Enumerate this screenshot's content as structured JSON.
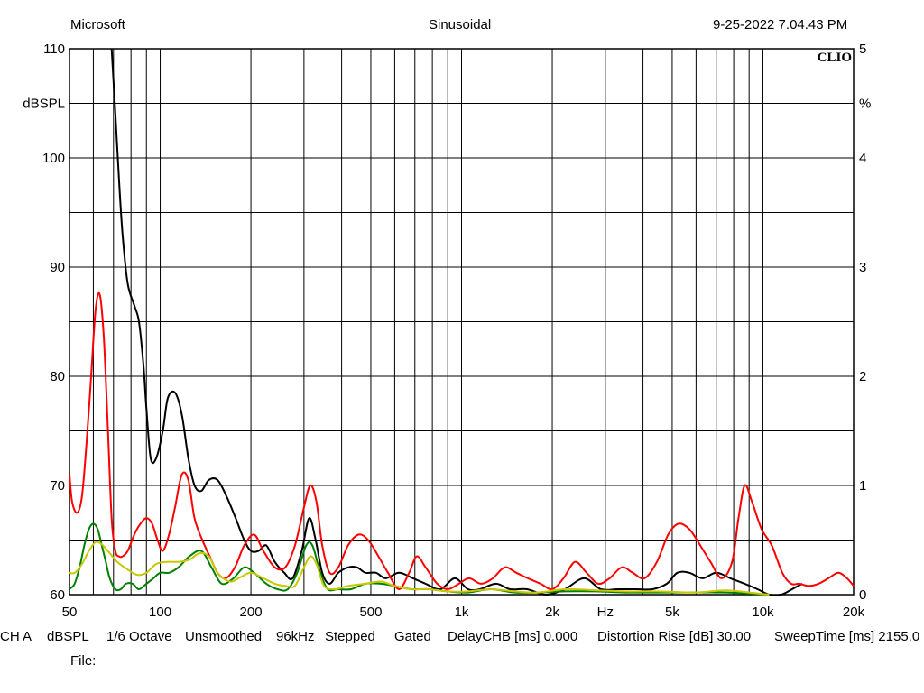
{
  "header": {
    "left": "Microsoft",
    "center": "Sinusoidal",
    "right": "9-25-2022 7.04.43 PM"
  },
  "footer": {
    "settings": [
      "CH A",
      "dBSPL",
      "1/6 Octave",
      "Unsmoothed",
      "96kHz",
      "Stepped",
      "Gated",
      "DelayCHB [ms] 0.000",
      "Distortion Rise [dB] 30.00",
      "SweepTime [ms] 2155.0"
    ],
    "file_label": "File:"
  },
  "chart_data": {
    "type": "line",
    "brand": "CLIO",
    "x_scale": "log",
    "xlim": [
      50,
      20000
    ],
    "x_tick_labels": [
      {
        "value": 50,
        "label": "50"
      },
      {
        "value": 100,
        "label": "100"
      },
      {
        "value": 200,
        "label": "200"
      },
      {
        "value": 500,
        "label": "500"
      },
      {
        "value": 1000,
        "label": "1k"
      },
      {
        "value": 2000,
        "label": "2k"
      },
      {
        "value": 3000,
        "label": "Hz"
      },
      {
        "value": 5000,
        "label": "5k"
      },
      {
        "value": 10000,
        "label": "10k"
      },
      {
        "value": 20000,
        "label": "20k"
      }
    ],
    "x_gridlines": [
      50,
      60,
      70,
      80,
      90,
      100,
      200,
      300,
      400,
      500,
      600,
      700,
      800,
      900,
      1000,
      2000,
      3000,
      4000,
      5000,
      6000,
      7000,
      8000,
      9000,
      10000,
      20000
    ],
    "y_left": {
      "label": "dBSPL",
      "ylim": [
        60,
        110
      ],
      "ticks": [
        60,
        70,
        80,
        90,
        100,
        110
      ]
    },
    "y_right": {
      "label": "%",
      "ylim": [
        0,
        5
      ],
      "ticks": [
        0,
        1,
        2,
        3,
        4,
        5
      ]
    },
    "grid": true,
    "series": [
      {
        "color": "#000000",
        "axis": "left",
        "x": [
          69,
          71,
          73,
          75,
          78,
          82,
          85,
          88,
          90,
          93,
          97,
          102,
          106,
          112,
          118,
          124,
          130,
          137,
          145,
          155,
          166,
          178,
          190,
          200,
          212,
          225,
          240,
          258,
          275,
          295,
          312,
          328,
          345,
          365,
          390,
          420,
          450,
          480,
          520,
          560,
          620,
          690,
          760,
          850,
          950,
          1050,
          1150,
          1300,
          1450,
          1650,
          1900,
          2200,
          2550,
          2900,
          3300,
          3800,
          4300,
          4800,
          5200,
          5700,
          6300,
          7000,
          7800,
          8700,
          9600,
          10500,
          11500,
          12500,
          13500
        ],
        "y": [
          110,
          104,
          98,
          93,
          88.5,
          86.5,
          85,
          81,
          77,
          72.5,
          72.5,
          75,
          78,
          78.5,
          76.5,
          72.5,
          70,
          69.5,
          70.5,
          70.5,
          69,
          67,
          65,
          64,
          64,
          64.5,
          63,
          62,
          61.5,
          64,
          67,
          65,
          62,
          61,
          62,
          62.5,
          62.5,
          62,
          62,
          61.5,
          62,
          61.5,
          61,
          60.5,
          61.5,
          60.5,
          60.5,
          61,
          60.5,
          60.5,
          60,
          60.5,
          61.5,
          60.5,
          60.5,
          60.5,
          60.5,
          61,
          62,
          62,
          61.5,
          62,
          61.5,
          61,
          60.5,
          60,
          60,
          60.5,
          61
        ]
      },
      {
        "color": "#ff0000",
        "axis": "left",
        "x": [
          50,
          51,
          53,
          55,
          57,
          59,
          61,
          63,
          65,
          67,
          69,
          71,
          73,
          75,
          78,
          82,
          86,
          90,
          94,
          98,
          102,
          107,
          112,
          118,
          124,
          130,
          138,
          146,
          155,
          165,
          177,
          190,
          205,
          220,
          240,
          260,
          280,
          300,
          315,
          330,
          345,
          365,
          390,
          420,
          455,
          490,
          530,
          570,
          620,
          670,
          710,
          760,
          830,
          900,
          980,
          1060,
          1160,
          1270,
          1390,
          1520,
          1660,
          1830,
          2000,
          2180,
          2380,
          2600,
          2840,
          3100,
          3400,
          3700,
          4050,
          4450,
          4850,
          5250,
          5700,
          6200,
          6700,
          7300,
          7900,
          8300,
          8700,
          9200,
          9900,
          10700,
          11600,
          12400,
          13200,
          14200,
          15300,
          16500,
          17800,
          19000,
          20000
        ],
        "y": [
          71,
          68.5,
          67.5,
          69,
          74,
          80,
          86,
          87.5,
          83.5,
          75.5,
          67,
          64,
          63.5,
          63.5,
          64,
          65.5,
          66.5,
          67,
          66.5,
          65,
          64,
          65.5,
          68,
          71,
          70.5,
          67,
          65,
          63.5,
          62,
          61.5,
          62.5,
          64.5,
          65.5,
          64,
          62.5,
          62.5,
          64.5,
          68,
          70,
          68.5,
          64.5,
          62,
          62.5,
          64.5,
          65.5,
          65,
          63.5,
          62,
          60.5,
          62,
          63.5,
          62.5,
          61,
          60.5,
          61,
          61.5,
          61,
          61.5,
          62.5,
          62,
          61.5,
          61,
          60.5,
          61.5,
          63,
          62,
          61,
          61.5,
          62.5,
          62,
          61.5,
          63,
          65.5,
          66.5,
          66,
          64.5,
          63,
          61.5,
          63,
          67,
          70,
          68.5,
          66,
          64.5,
          62,
          61,
          61,
          60.8,
          61,
          61.5,
          62,
          61.5,
          60.8
        ]
      },
      {
        "color": "#008000",
        "axis": "left",
        "x": [
          50,
          52,
          54,
          56,
          58,
          60,
          62,
          64,
          66,
          68,
          71,
          74,
          77,
          81,
          85,
          90,
          95,
          100,
          107,
          115,
          125,
          137,
          148,
          160,
          175,
          190,
          205,
          225,
          245,
          265,
          285,
          305,
          320,
          340,
          360,
          390,
          430,
          480,
          540,
          600,
          680,
          780,
          900,
          1050,
          1250,
          1500,
          1800,
          2200,
          2800,
          3500,
          4500,
          6000,
          7500,
          9000,
          10500
        ],
        "y": [
          60.5,
          61,
          62.5,
          64.5,
          66,
          66.5,
          66,
          64.5,
          63,
          61.5,
          60.5,
          60.5,
          61,
          61,
          60.5,
          61,
          61.5,
          62,
          62,
          62.5,
          63.5,
          64,
          62.5,
          61,
          61.5,
          62.5,
          62,
          61,
          60.5,
          60.5,
          62,
          64.5,
          64.5,
          62,
          60.5,
          60.5,
          60.5,
          61,
          61,
          60.8,
          60.5,
          60.5,
          60.3,
          60.2,
          60.5,
          60.2,
          60.2,
          60.3,
          60.3,
          60.2,
          60.2,
          60.2,
          60.2,
          60.1,
          60
        ]
      },
      {
        "color": "#c8c800",
        "axis": "left",
        "x": [
          50,
          52,
          55,
          58,
          61,
          64,
          68,
          72,
          78,
          84,
          90,
          97,
          105,
          115,
          125,
          135,
          145,
          155,
          170,
          185,
          200,
          220,
          240,
          260,
          280,
          300,
          315,
          330,
          350,
          380,
          420,
          480,
          540,
          600,
          680,
          780,
          900,
          1050,
          1250,
          1500,
          1800,
          2200,
          2800,
          3500,
          4500,
          6000,
          7500,
          9000,
          10500
        ],
        "y": [
          62,
          62,
          62.8,
          64,
          64.8,
          64.6,
          63.8,
          63,
          62.3,
          61.8,
          62,
          62.8,
          63,
          63,
          63.2,
          63.8,
          63.5,
          62,
          61.2,
          61.6,
          62,
          61.5,
          61,
          60.8,
          60.8,
          62.5,
          63.5,
          62.8,
          60.8,
          60.5,
          60.8,
          61,
          61.2,
          60.8,
          60.5,
          60.5,
          60.3,
          60.3,
          60.5,
          60.3,
          60.2,
          60.5,
          60.4,
          60.3,
          60.3,
          60.2,
          60.4,
          60.2,
          60
        ]
      }
    ]
  }
}
